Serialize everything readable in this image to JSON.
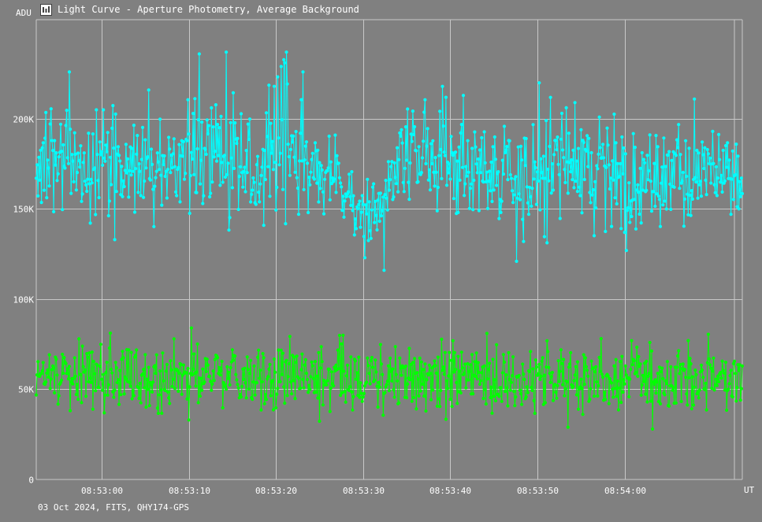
{
  "window": {
    "title": "Light Curve - Aperture Photometry, Average Background",
    "footer": "03 Oct 2024, FITS, QHY174-GPS"
  },
  "colors": {
    "background": "#808080",
    "grid": "#c8c8c8",
    "target": "#00ffff",
    "comparison": "#00ff00"
  },
  "chart_data": {
    "type": "line",
    "ylabel": "ADU",
    "xlabel": "UT",
    "x_range": [
      "08:52:52.5",
      "08:54:13.5"
    ],
    "ylim": [
      0,
      255000
    ],
    "y_ticks": [
      {
        "value": 0,
        "label": "0"
      },
      {
        "value": 50000,
        "label": "50K"
      },
      {
        "value": 100000,
        "label": "100K"
      },
      {
        "value": 150000,
        "label": "150K"
      },
      {
        "value": 200000,
        "label": "200K"
      }
    ],
    "x_ticks": [
      "08:53:00",
      "08:53:10",
      "08:53:20",
      "08:53:30",
      "08:53:40",
      "08:53:50",
      "08:54:00"
    ],
    "x_tick_seconds": [
      60,
      70,
      80,
      90,
      100,
      110,
      120
    ],
    "x_start_seconds": 52.5,
    "x_end_seconds": 133.5,
    "sample_interval_s": 0.1,
    "grid": true,
    "series": [
      {
        "key": "target",
        "markers": true,
        "segments": [
          {
            "t": 52.5,
            "v": 175000,
            "spread": 32000
          },
          {
            "t": 55.0,
            "v": 178000,
            "spread": 38000
          },
          {
            "t": 58.0,
            "v": 168000,
            "spread": 30000
          },
          {
            "t": 61.0,
            "v": 176000,
            "spread": 40000
          },
          {
            "t": 64.5,
            "v": 168000,
            "spread": 36000
          },
          {
            "t": 67.0,
            "v": 172000,
            "spread": 30000
          },
          {
            "t": 70.0,
            "v": 180000,
            "spread": 46000
          },
          {
            "t": 74.0,
            "v": 178000,
            "spread": 54000
          },
          {
            "t": 78.0,
            "v": 175000,
            "spread": 46000
          },
          {
            "t": 81.0,
            "v": 185000,
            "spread": 54000
          },
          {
            "t": 84.0,
            "v": 172000,
            "spread": 34000
          },
          {
            "t": 87.0,
            "v": 166000,
            "spread": 30000
          },
          {
            "t": 90.0,
            "v": 142000,
            "spread": 26000
          },
          {
            "t": 92.5,
            "v": 160000,
            "spread": 34000
          },
          {
            "t": 95.0,
            "v": 178000,
            "spread": 40000
          },
          {
            "t": 99.0,
            "v": 180000,
            "spread": 44000
          },
          {
            "t": 102.0,
            "v": 168000,
            "spread": 34000
          },
          {
            "t": 106.0,
            "v": 170000,
            "spread": 42000
          },
          {
            "t": 110.0,
            "v": 175000,
            "spread": 46000
          },
          {
            "t": 114.0,
            "v": 175000,
            "spread": 44000
          },
          {
            "t": 118.0,
            "v": 170000,
            "spread": 40000
          },
          {
            "t": 121.0,
            "v": 163000,
            "spread": 42000
          },
          {
            "t": 125.0,
            "v": 168000,
            "spread": 32000
          },
          {
            "t": 129.0,
            "v": 172000,
            "spread": 30000
          },
          {
            "t": 133.5,
            "v": 165000,
            "spread": 30000
          }
        ],
        "spikes": [
          {
            "t": 56.3,
            "v": 226000
          },
          {
            "t": 65.4,
            "v": 216000
          },
          {
            "t": 71.2,
            "v": 236000
          },
          {
            "t": 74.3,
            "v": 237000
          },
          {
            "t": 79.8,
            "v": 218000
          },
          {
            "t": 80.6,
            "v": 229000
          },
          {
            "t": 83.1,
            "v": 226000
          },
          {
            "t": 86.8,
            "v": 191000
          },
          {
            "t": 90.2,
            "v": 123000
          },
          {
            "t": 92.4,
            "v": 116000
          },
          {
            "t": 99.1,
            "v": 218000
          },
          {
            "t": 107.6,
            "v": 121000
          },
          {
            "t": 110.2,
            "v": 220000
          },
          {
            "t": 120.2,
            "v": 127000
          },
          {
            "t": 128.0,
            "v": 211000
          },
          {
            "t": 61.5,
            "v": 133000
          },
          {
            "t": 81.2,
            "v": 237000
          },
          {
            "t": 59.4,
            "v": 205000
          },
          {
            "t": 101.5,
            "v": 213000
          },
          {
            "t": 114.3,
            "v": 209000
          }
        ]
      },
      {
        "key": "comparison",
        "markers": true,
        "segments": [
          {
            "t": 52.5,
            "v": 56000,
            "spread": 24000
          },
          {
            "t": 133.5,
            "v": 56000,
            "spread": 24000
          }
        ],
        "spikes": [
          {
            "t": 59.0,
            "v": 39000
          },
          {
            "t": 70.3,
            "v": 84000
          },
          {
            "t": 70.0,
            "v": 33000
          },
          {
            "t": 97.2,
            "v": 38000
          },
          {
            "t": 104.2,
            "v": 81000
          },
          {
            "t": 113.5,
            "v": 29000
          },
          {
            "t": 123.2,
            "v": 28000
          },
          {
            "t": 120.8,
            "v": 77000
          }
        ]
      }
    ]
  }
}
